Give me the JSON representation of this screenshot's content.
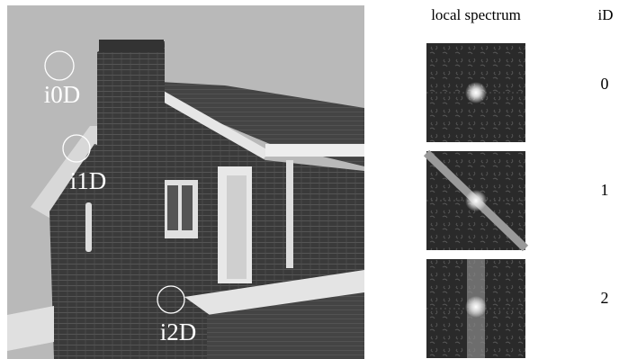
{
  "figure": {
    "image_labels": [
      "i0D",
      "i1D",
      "i2D"
    ],
    "column_headers": {
      "spectrum": "local spectrum",
      "id": "iD"
    },
    "id_values": [
      0,
      1,
      2
    ]
  }
}
